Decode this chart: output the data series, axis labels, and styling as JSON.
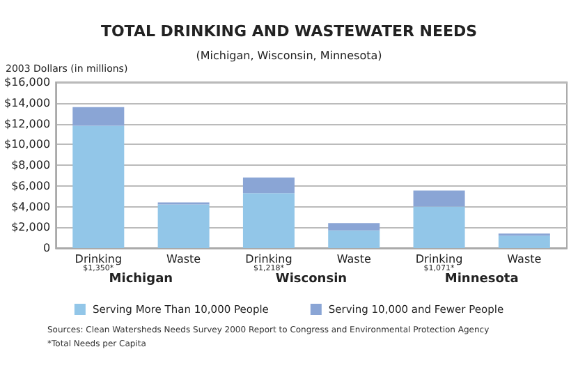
{
  "chart_data": {
    "type": "bar",
    "title": "TOTAL DRINKING AND WASTEWATER NEEDS",
    "subtitle": "(Michigan, Wisconsin, Minnesota)",
    "ylabel": "2003 Dollars (in millions)",
    "categories": [
      "Drinking\n$1,350*",
      "Waste",
      "Drinking\n$1,218*",
      "Waste",
      "Drinking\n$1,071*",
      "Waste"
    ],
    "stacked": true,
    "series": [
      {
        "name": "Serving More Than 10,000 People",
        "color": "#92c6e8",
        "values": [
          11800,
          4200,
          5300,
          1700,
          4000,
          1200
        ]
      },
      {
        "name": "Serving 10,000 and Fewer People",
        "color": "#8aa5d5",
        "values": [
          1800,
          200,
          1500,
          700,
          1550,
          200
        ]
      }
    ],
    "ylim": [
      0,
      16000
    ],
    "yticks": [
      0,
      {
        "value": 2000,
        "label": "$2,000"
      },
      {
        "value": 4000,
        "label": "$4,000"
      },
      {
        "value": 6000,
        "label": "$6,000"
      },
      {
        "value": 8000,
        "label": "$8,000"
      },
      {
        "value": 10000,
        "label": "$10,000"
      },
      {
        "value": 12000,
        "label": "$12,000"
      },
      {
        "value": 14000,
        "label": "$14,000"
      },
      {
        "value": 16000,
        "label": "$16,000"
      }
    ],
    "grid": true,
    "legend": "bottom",
    "annotations": [
      "Michigan",
      "Wisconsin",
      "Minnesota",
      "Sources: Clean Watersheds Needs Survey 2000 Report to Congress and Environmental Protection Agency",
      "*Total Needs per Capita"
    ]
  }
}
